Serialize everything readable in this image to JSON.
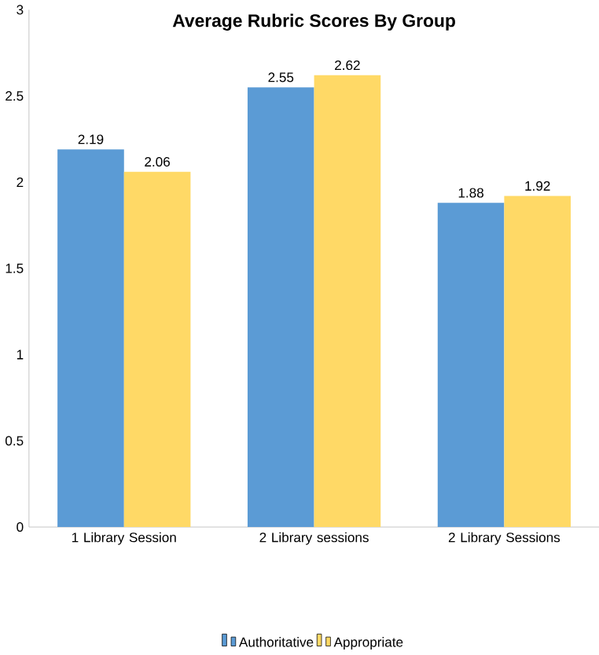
{
  "chart_data": {
    "type": "bar",
    "title": "Average Rubric Scores By Group",
    "categories": [
      "1 Library Session",
      "2 Library sessions",
      "2 Library Sessions"
    ],
    "series": [
      {
        "name": "Authoritative",
        "color": "#5b9bd5",
        "values": [
          2.19,
          2.55,
          1.88
        ]
      },
      {
        "name": "Appropriate",
        "color": "#ffd966",
        "values": [
          2.06,
          2.62,
          1.92
        ]
      }
    ],
    "ylim": [
      0,
      3
    ],
    "yticks": [
      0,
      0.5,
      1,
      1.5,
      2,
      2.5,
      3
    ],
    "data_labels": true,
    "legend": "bottom",
    "grid": false
  }
}
